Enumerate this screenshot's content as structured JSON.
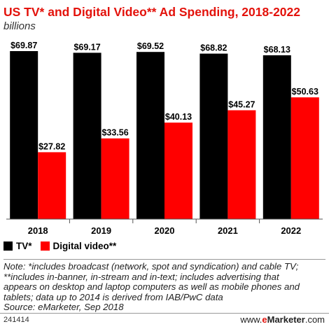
{
  "header": {
    "title": "US TV* and Digital Video** Ad Spending, 2018-2022",
    "subtitle": "billions"
  },
  "legend": {
    "tv_label": "TV*",
    "video_label": "Digital video**"
  },
  "notes": {
    "line1": "Note: *includes broadcast (network, spot and syndication) and cable TV;",
    "line2": "**includes in-banner, in-stream and in-text; includes advertising that",
    "line3": "appears on desktop and laptop computers as well as mobile phones and",
    "line4": "tablets; data up to 2014 is derived from IAB/PwC data",
    "source": "Source: eMarketer, Sep 2018"
  },
  "footer": {
    "chart_id": "241414",
    "brand_prefix": "www.",
    "brand_e": "e",
    "brand_name": "Marketer",
    "brand_suffix": ".com"
  },
  "colors": {
    "tv": "#000000",
    "video": "#ff0000",
    "title": "#e3120b"
  },
  "chart_data": {
    "type": "bar",
    "title": "US TV* and Digital Video** Ad Spending, 2018-2022",
    "subtitle": "billions",
    "categories": [
      "2018",
      "2019",
      "2020",
      "2021",
      "2022"
    ],
    "series": [
      {
        "name": "TV*",
        "values": [
          69.87,
          69.17,
          69.52,
          68.82,
          68.13
        ],
        "labels": [
          "$69.87",
          "$69.17",
          "$69.52",
          "$68.82",
          "$68.13"
        ]
      },
      {
        "name": "Digital video**",
        "values": [
          27.82,
          33.56,
          40.13,
          45.27,
          50.63
        ],
        "labels": [
          "$27.82",
          "$33.56",
          "$40.13",
          "$45.27",
          "$50.63"
        ]
      }
    ],
    "ylim": [
      0,
      69.87
    ],
    "grid": false,
    "legend_position": "bottom-left"
  }
}
